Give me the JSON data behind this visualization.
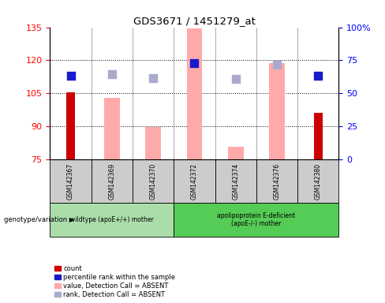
{
  "title": "GDS3671 / 1451279_at",
  "samples": [
    "GSM142367",
    "GSM142369",
    "GSM142370",
    "GSM142372",
    "GSM142374",
    "GSM142376",
    "GSM142380"
  ],
  "ylim_left": [
    75,
    135
  ],
  "ylim_right": [
    0,
    100
  ],
  "yticks_left": [
    75,
    90,
    105,
    120,
    135
  ],
  "yticks_right": [
    0,
    25,
    50,
    75,
    100
  ],
  "red_bars": [
    105.5,
    null,
    null,
    null,
    null,
    null,
    96.0
  ],
  "pink_bars": [
    null,
    103.0,
    89.5,
    134.5,
    80.5,
    118.5,
    null
  ],
  "blue_squares": [
    113.0,
    null,
    null,
    118.5,
    null,
    null,
    113.0
  ],
  "light_blue_squares": [
    null,
    113.5,
    112.0,
    null,
    111.5,
    118.0,
    null
  ],
  "group1_label": "wildtype (apoE+/+) mother",
  "group2_label": "apolipoprotein E-deficient\n(apoE-/-) mother",
  "group1_indices": [
    0,
    1,
    2
  ],
  "group2_indices": [
    3,
    4,
    5,
    6
  ],
  "genotype_label": "genotype/variation",
  "bar_width": 0.38,
  "red_bar_color": "#cc0000",
  "pink_bar_color": "#ffaaaa",
  "blue_sq_color": "#1a1acc",
  "light_blue_sq_color": "#aaaacc",
  "bg_color": "#ffffff",
  "plot_bg": "#ffffff",
  "gray_cell_bg": "#cccccc",
  "group1_bg": "#aaddaa",
  "group2_bg": "#55cc55",
  "legend_labels": [
    "count",
    "percentile rank within the sample",
    "value, Detection Call = ABSENT",
    "rank, Detection Call = ABSENT"
  ],
  "legend_colors": [
    "#cc0000",
    "#1a1acc",
    "#ffaaaa",
    "#aaaacc"
  ]
}
